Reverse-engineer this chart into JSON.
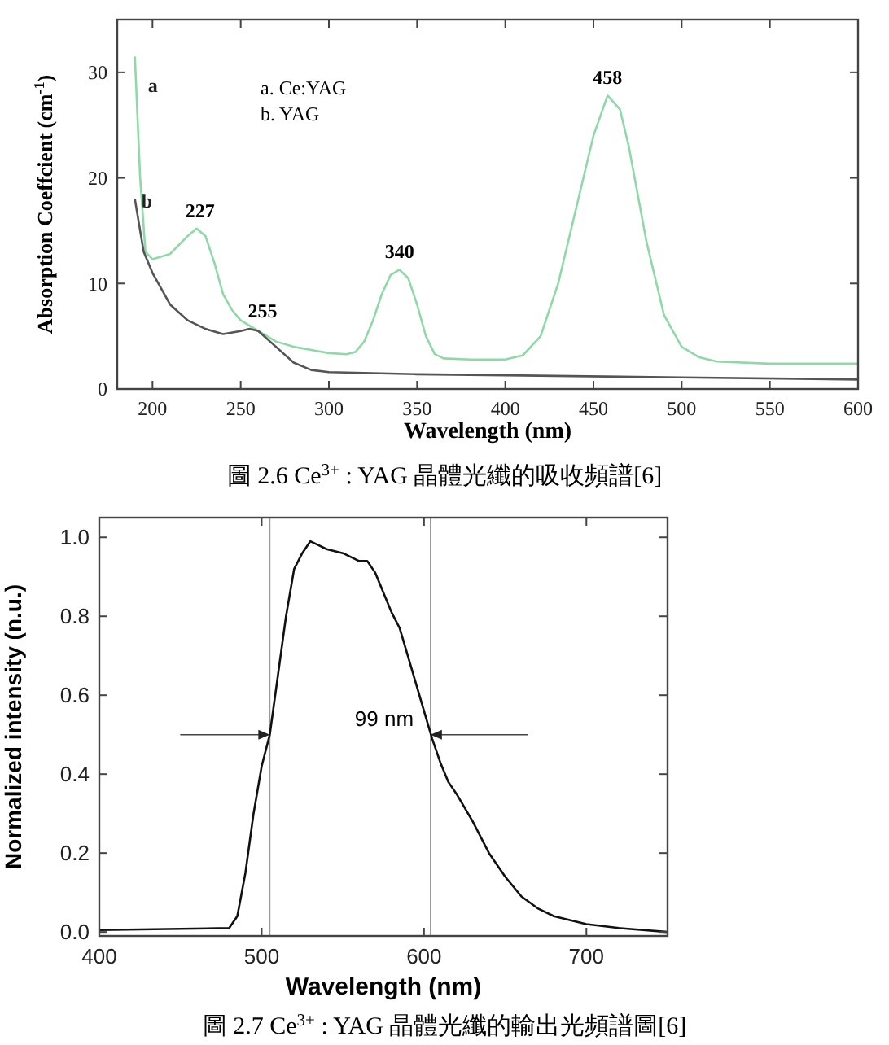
{
  "chart_data": [
    {
      "type": "line",
      "xlabel": "Wavelength (nm)",
      "ylabel": "Absorption Coeffcient (cm$^{-1}$)",
      "xlim": [
        180,
        600
      ],
      "ylim": [
        0,
        35
      ],
      "xticks": [
        200,
        250,
        300,
        350,
        400,
        450,
        500,
        550,
        600
      ],
      "yticks": [
        0,
        10,
        20,
        30
      ],
      "series": [
        {
          "name": "a",
          "color": "#8fd9a8",
          "x": [
            190,
            193,
            196,
            200,
            210,
            220,
            225,
            230,
            235,
            240,
            245,
            250,
            260,
            270,
            280,
            290,
            300,
            310,
            315,
            320,
            325,
            330,
            335,
            340,
            345,
            350,
            355,
            360,
            365,
            380,
            400,
            410,
            420,
            430,
            440,
            450,
            458,
            465,
            470,
            480,
            490,
            500,
            510,
            520,
            550,
            600
          ],
          "values": [
            31.5,
            20,
            13,
            12.3,
            12.8,
            14.5,
            15.2,
            14.5,
            12,
            9,
            7.5,
            6.5,
            5.5,
            4.5,
            4,
            3.7,
            3.4,
            3.3,
            3.5,
            4.5,
            6.5,
            9,
            10.8,
            11.3,
            10.5,
            8,
            5,
            3.3,
            2.9,
            2.8,
            2.8,
            3.2,
            5,
            10,
            17,
            24,
            27.8,
            26.5,
            23,
            14,
            7,
            4,
            3,
            2.6,
            2.4,
            2.4
          ]
        },
        {
          "name": "b",
          "color": "#555555",
          "x": [
            190,
            195,
            200,
            210,
            220,
            230,
            240,
            250,
            255,
            260,
            270,
            280,
            290,
            300,
            350,
            400,
            500,
            600
          ],
          "values": [
            18,
            13,
            11,
            8,
            6.5,
            5.7,
            5.2,
            5.5,
            5.7,
            5.5,
            4,
            2.5,
            1.8,
            1.6,
            1.4,
            1.3,
            1.1,
            0.9
          ]
        }
      ],
      "annotations": [
        "a. Ce:YAG",
        "b. YAG",
        "圖 2.6  Ce$^{3+}$ : YAG 晶體光纖的吸收頻譜[6]",
        {
          "text": "227",
          "x": 227,
          "y": 15.2
        },
        {
          "text": "255",
          "x": 255,
          "y": 5.7
        },
        {
          "text": "340",
          "x": 340,
          "y": 11.3
        },
        {
          "text": "458",
          "x": 458,
          "y": 27.8
        }
      ]
    },
    {
      "type": "line",
      "xlabel": "Wavelength (nm)",
      "ylabel": "Normalized intensity (n.u.)",
      "xlim": [
        400,
        750
      ],
      "ylim": [
        -0.01,
        1.05
      ],
      "xticks": [
        400,
        500,
        600,
        700
      ],
      "yticks": [
        {
          "value": 0,
          "label": "0.0"
        },
        {
          "value": 0.2,
          "label": "0.2"
        },
        {
          "value": 0.4,
          "label": "0.4"
        },
        {
          "value": 0.6,
          "label": "0.6"
        },
        {
          "value": 0.8,
          "label": "0.8"
        },
        {
          "value": 1,
          "label": "1.0"
        }
      ],
      "series": [
        {
          "color": "#111111",
          "x": [
            400,
            480,
            485,
            490,
            495,
            500,
            505,
            510,
            515,
            520,
            525,
            530,
            535,
            540,
            550,
            560,
            565,
            570,
            575,
            580,
            585,
            590,
            595,
            600,
            605,
            610,
            615,
            620,
            630,
            640,
            650,
            660,
            670,
            680,
            700,
            720,
            750
          ],
          "values": [
            0.005,
            0.01,
            0.04,
            0.15,
            0.3,
            0.42,
            0.5,
            0.65,
            0.8,
            0.92,
            0.96,
            0.99,
            0.98,
            0.97,
            0.96,
            0.94,
            0.94,
            0.91,
            0.86,
            0.81,
            0.77,
            0.7,
            0.63,
            0.56,
            0.49,
            0.43,
            0.38,
            0.35,
            0.28,
            0.2,
            0.14,
            0.09,
            0.06,
            0.04,
            0.02,
            0.01,
            0.0
          ]
        }
      ],
      "ref_lines": [
        {
          "axis": "x",
          "value": 505,
          "color": "#999999"
        },
        {
          "axis": "x",
          "value": 604,
          "color": "#999999"
        }
      ],
      "annotations": [
        "99 nm",
        "圖 2.7  Ce$^{3+}$ : YAG 晶體光纖的輸出光頻譜圖[6]"
      ]
    }
  ]
}
